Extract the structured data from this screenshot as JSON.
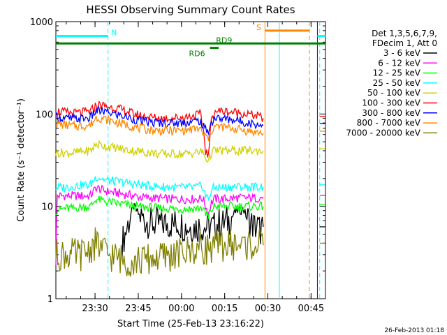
{
  "chart_data": {
    "type": "line",
    "title": "HESSI Observing Summary Count Rates",
    "xlabel": "Start Time (25-Feb-13 23:16:22)",
    "ylabel": "Count Rate (s⁻¹ detector⁻¹)",
    "yscale": "log",
    "ylim": [
      1,
      1000
    ],
    "xlim_minutes_after_start": [
      0,
      93.6
    ],
    "x_tick_labels": [
      "23:30",
      "23:45",
      "00:00",
      "00:15",
      "00:30",
      "00:45"
    ],
    "y_tick_labels": [
      "1",
      "10",
      "100",
      "1000"
    ],
    "legend_header": [
      "Det 1,3,5,6,7,9,",
      "FDecim 1, Att 0"
    ],
    "legend_placement": "right",
    "footer_date": "26-Feb-2013 01:18",
    "data_gap_minutes": [
      [
        72.6,
        91.6
      ]
    ],
    "series": [
      {
        "name": "3 - 6 keV",
        "color": "#000000",
        "points": [
          [
            23,
            4
          ],
          [
            24,
            5
          ],
          [
            26,
            8
          ],
          [
            27,
            10
          ],
          [
            29,
            8
          ],
          [
            31,
            7
          ],
          [
            33,
            6.5
          ],
          [
            35,
            6.5
          ],
          [
            37,
            6.5
          ],
          [
            39,
            6.5
          ],
          [
            41,
            6.5
          ],
          [
            43,
            6.5
          ],
          [
            45,
            6
          ],
          [
            47,
            6
          ],
          [
            49,
            6
          ],
          [
            51,
            6
          ],
          [
            53,
            6
          ],
          [
            55,
            6
          ],
          [
            56,
            6.5
          ],
          [
            58,
            6.5
          ],
          [
            60,
            7
          ],
          [
            62,
            8.5
          ],
          [
            63,
            9
          ],
          [
            64,
            9
          ],
          [
            65,
            9.5
          ],
          [
            66,
            8
          ],
          [
            67,
            7
          ],
          [
            68,
            6.5
          ],
          [
            69,
            6
          ],
          [
            70,
            6
          ],
          [
            71,
            5.5
          ],
          [
            72,
            6
          ]
        ]
      },
      {
        "name": "6 - 12 keV",
        "color": "#ff00ff",
        "points": [
          [
            0,
            3
          ],
          [
            0.5,
            13
          ],
          [
            3,
            13
          ],
          [
            6,
            13
          ],
          [
            9,
            13
          ],
          [
            12,
            13
          ],
          [
            14,
            16
          ],
          [
            16,
            15
          ],
          [
            18,
            14.5
          ],
          [
            21,
            14
          ],
          [
            24,
            13.5
          ],
          [
            27,
            13
          ],
          [
            30,
            12.5
          ],
          [
            33,
            12.3
          ],
          [
            36,
            12.2
          ],
          [
            39,
            12
          ],
          [
            42,
            12
          ],
          [
            45,
            12
          ],
          [
            48,
            12
          ],
          [
            51,
            12.2
          ],
          [
            52,
            10
          ],
          [
            53,
            8.5
          ],
          [
            54,
            11
          ],
          [
            55,
            12
          ],
          [
            58,
            12
          ],
          [
            61,
            12.2
          ],
          [
            64,
            12.3
          ],
          [
            67,
            12.3
          ],
          [
            70,
            12.3
          ],
          [
            72,
            12.5
          ]
        ]
      },
      {
        "name": "12 - 25 keV",
        "color": "#00ff00",
        "points": [
          [
            0,
            9
          ],
          [
            3,
            9.5
          ],
          [
            6,
            9.5
          ],
          [
            9,
            9.8
          ],
          [
            12,
            10
          ],
          [
            14,
            12
          ],
          [
            16,
            11.5
          ],
          [
            18,
            11.2
          ],
          [
            21,
            10.8
          ],
          [
            24,
            10.5
          ],
          [
            27,
            10
          ],
          [
            30,
            9.8
          ],
          [
            33,
            9.7
          ],
          [
            36,
            9.5
          ],
          [
            39,
            9.5
          ],
          [
            42,
            9.4
          ],
          [
            45,
            9.4
          ],
          [
            48,
            9.5
          ],
          [
            51,
            9.6
          ],
          [
            52,
            8
          ],
          [
            53,
            7
          ],
          [
            54,
            9
          ],
          [
            55,
            10
          ],
          [
            58,
            10
          ],
          [
            61,
            10
          ],
          [
            64,
            10
          ],
          [
            67,
            10
          ],
          [
            70,
            10
          ],
          [
            72,
            10
          ]
        ]
      },
      {
        "name": "25 - 50 keV",
        "color": "#00ffff",
        "points": [
          [
            0,
            16
          ],
          [
            3,
            16
          ],
          [
            6,
            16.5
          ],
          [
            9,
            17
          ],
          [
            12,
            17
          ],
          [
            14,
            21
          ],
          [
            16,
            20
          ],
          [
            18,
            19
          ],
          [
            21,
            18.5
          ],
          [
            24,
            18
          ],
          [
            27,
            17.5
          ],
          [
            30,
            17
          ],
          [
            33,
            16.5
          ],
          [
            36,
            16.3
          ],
          [
            39,
            16.2
          ],
          [
            42,
            16
          ],
          [
            45,
            16
          ],
          [
            48,
            16
          ],
          [
            51,
            16.5
          ],
          [
            52,
            13
          ],
          [
            53,
            12
          ],
          [
            54,
            15
          ],
          [
            55,
            16
          ],
          [
            58,
            16
          ],
          [
            61,
            16.2
          ],
          [
            64,
            16.3
          ],
          [
            67,
            16.2
          ],
          [
            70,
            16.3
          ],
          [
            72,
            16.3
          ]
        ]
      },
      {
        "name": "50 - 100 keV",
        "color": "#d0d000",
        "points": [
          [
            0,
            38
          ],
          [
            3,
            38
          ],
          [
            6,
            38
          ],
          [
            9,
            39
          ],
          [
            12,
            40
          ],
          [
            14,
            47
          ],
          [
            16,
            46
          ],
          [
            18,
            44
          ],
          [
            21,
            43
          ],
          [
            24,
            41
          ],
          [
            27,
            40
          ],
          [
            30,
            39
          ],
          [
            33,
            38
          ],
          [
            36,
            37
          ],
          [
            39,
            37
          ],
          [
            42,
            37
          ],
          [
            45,
            37
          ],
          [
            48,
            38
          ],
          [
            51,
            39
          ],
          [
            52,
            33
          ],
          [
            53,
            32
          ],
          [
            54,
            38
          ],
          [
            55,
            40
          ],
          [
            58,
            40
          ],
          [
            61,
            40
          ],
          [
            64,
            40
          ],
          [
            67,
            40
          ],
          [
            70,
            40
          ],
          [
            72,
            40
          ]
        ]
      },
      {
        "name": "100 - 300 keV",
        "color": "#ff0000",
        "points": [
          [
            0,
            108
          ],
          [
            3,
            104
          ],
          [
            6,
            102
          ],
          [
            9,
            104
          ],
          [
            12,
            106
          ],
          [
            14,
            125
          ],
          [
            16,
            124
          ],
          [
            18,
            120
          ],
          [
            21,
            115
          ],
          [
            24,
            108
          ],
          [
            27,
            100
          ],
          [
            30,
            95
          ],
          [
            33,
            92
          ],
          [
            36,
            90
          ],
          [
            39,
            90
          ],
          [
            42,
            91
          ],
          [
            45,
            93
          ],
          [
            48,
            96
          ],
          [
            50,
            100
          ],
          [
            51,
            78
          ],
          [
            52,
            40
          ],
          [
            53,
            35
          ],
          [
            54,
            88
          ],
          [
            55,
            108
          ],
          [
            58,
            107
          ],
          [
            61,
            105
          ],
          [
            64,
            103
          ],
          [
            67,
            99
          ],
          [
            70,
            95
          ],
          [
            72,
            90
          ]
        ]
      },
      {
        "name": "300 - 800 keV",
        "color": "#0000ff",
        "points": [
          [
            0,
            94
          ],
          [
            3,
            90
          ],
          [
            6,
            88
          ],
          [
            9,
            89
          ],
          [
            12,
            91
          ],
          [
            14,
            108
          ],
          [
            16,
            107
          ],
          [
            18,
            104
          ],
          [
            21,
            99
          ],
          [
            24,
            94
          ],
          [
            27,
            88
          ],
          [
            30,
            84
          ],
          [
            33,
            81
          ],
          [
            36,
            80
          ],
          [
            39,
            80
          ],
          [
            42,
            80
          ],
          [
            45,
            81
          ],
          [
            48,
            83
          ],
          [
            50,
            85
          ],
          [
            51,
            73
          ],
          [
            52,
            68
          ],
          [
            53,
            66
          ],
          [
            54,
            80
          ],
          [
            55,
            90
          ],
          [
            58,
            89
          ],
          [
            61,
            87
          ],
          [
            64,
            84
          ],
          [
            67,
            80
          ],
          [
            70,
            77
          ],
          [
            72,
            75
          ]
        ]
      },
      {
        "name": "800 - 7000 keV",
        "color": "#ff8800",
        "points": [
          [
            0,
            79
          ],
          [
            3,
            76
          ],
          [
            6,
            74
          ],
          [
            9,
            74
          ],
          [
            12,
            76
          ],
          [
            14,
            92
          ],
          [
            16,
            90
          ],
          [
            18,
            86
          ],
          [
            21,
            81
          ],
          [
            24,
            77
          ],
          [
            27,
            73
          ],
          [
            30,
            69
          ],
          [
            33,
            67
          ],
          [
            36,
            66
          ],
          [
            39,
            66
          ],
          [
            42,
            66
          ],
          [
            45,
            67
          ],
          [
            48,
            68
          ],
          [
            50,
            70
          ],
          [
            51,
            60
          ],
          [
            52,
            57
          ],
          [
            53,
            55
          ],
          [
            54,
            66
          ],
          [
            55,
            73
          ],
          [
            58,
            72
          ],
          [
            61,
            70
          ],
          [
            64,
            68
          ],
          [
            67,
            65
          ],
          [
            70,
            63
          ],
          [
            72,
            62
          ]
        ]
      },
      {
        "name": "7000 - 20000 keV",
        "color": "#808000",
        "points": [
          [
            0,
            3
          ],
          [
            3,
            3
          ],
          [
            6,
            3
          ],
          [
            9,
            3
          ],
          [
            12,
            3.5
          ],
          [
            14,
            4
          ],
          [
            16,
            3.5
          ],
          [
            18,
            3
          ],
          [
            21,
            2.8
          ],
          [
            24,
            2.6
          ],
          [
            27,
            2.5
          ],
          [
            30,
            2.6
          ],
          [
            33,
            2.7
          ],
          [
            36,
            2.8
          ],
          [
            39,
            2.9
          ],
          [
            42,
            3
          ],
          [
            45,
            3.2
          ],
          [
            48,
            3.4
          ],
          [
            50,
            3.6
          ],
          [
            52,
            3.5
          ],
          [
            55,
            3.6
          ],
          [
            58,
            3.8
          ],
          [
            61,
            3.8
          ],
          [
            64,
            3.8
          ],
          [
            67,
            3.8
          ],
          [
            70,
            3.8
          ],
          [
            72,
            3.8
          ]
        ]
      }
    ],
    "flags": [
      {
        "label": "N",
        "color": "#00ffff",
        "level": 700
      },
      {
        "label": "S",
        "color": "#ff8800",
        "level": 800
      },
      {
        "label": "RD6",
        "color": "#008000",
        "level": 520
      },
      {
        "label": "RD9",
        "color": "#008000",
        "level": 580
      }
    ]
  }
}
